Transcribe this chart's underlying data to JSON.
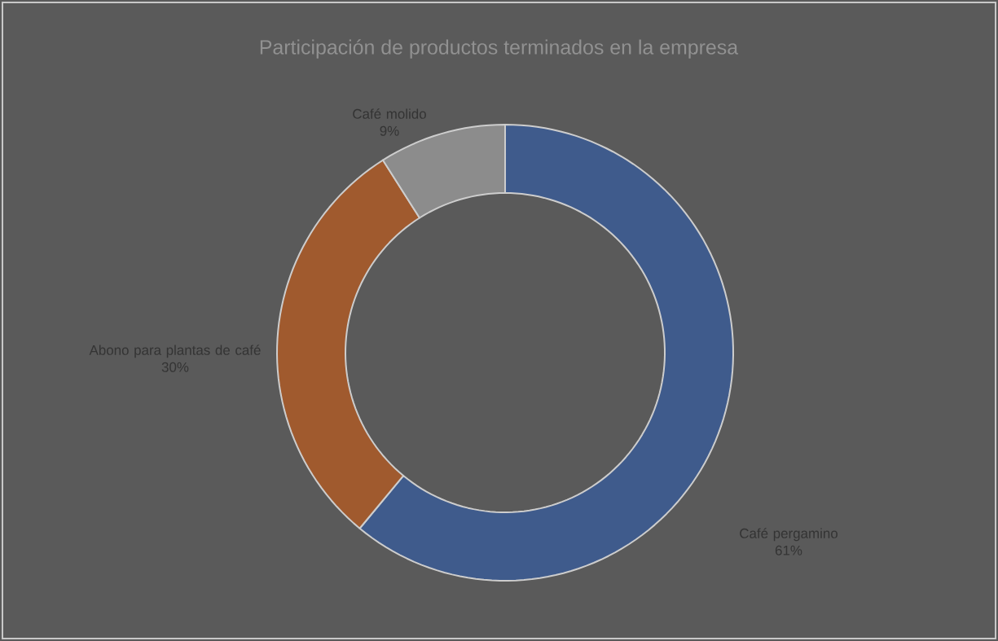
{
  "chart_data": {
    "type": "donut",
    "title": "Participación de productos terminados en la empresa",
    "categories": [
      "Café pergamino",
      "Abono para plantas de café",
      "Café molido"
    ],
    "values": [
      61,
      30,
      9
    ],
    "value_labels": [
      "61%",
      "30%",
      "9%"
    ],
    "colors": [
      "#3f5b8c",
      "#a05a2e",
      "#8c8c8c"
    ]
  }
}
